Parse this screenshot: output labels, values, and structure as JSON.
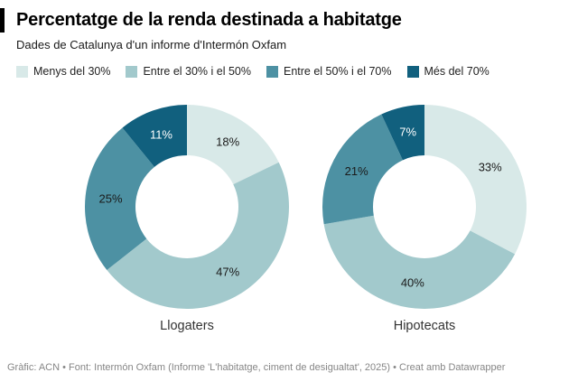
{
  "header": {
    "title": "Percentatge de la renda destinada a habitatge",
    "subtitle": "Dades de Catalunya d'un informe d'Intermón Oxfam"
  },
  "legend": {
    "position": "top",
    "items": [
      {
        "label": "Menys del 30%",
        "color": "#d8e9e8"
      },
      {
        "label": "Entre el 30% i el 50%",
        "color": "#a2c9cc"
      },
      {
        "label": "Entre el 50% i el 70%",
        "color": "#4d91a3"
      },
      {
        "label": "Més del 70%",
        "color": "#11607e"
      }
    ]
  },
  "chart_data": [
    {
      "type": "pie",
      "variant": "donut",
      "title": "Llogaters",
      "categories": [
        "Menys del 30%",
        "Entre el 30% i el 50%",
        "Entre el 50% i el 70%",
        "Més del 70%"
      ],
      "values": [
        18,
        47,
        25,
        11
      ],
      "labels": [
        "18%",
        "47%",
        "25%",
        "11%"
      ],
      "colors": [
        "#d8e9e8",
        "#a2c9cc",
        "#4d91a3",
        "#11607e"
      ],
      "label_colors": [
        "#1a1a1a",
        "#1a1a1a",
        "#1a1a1a",
        "#ffffff"
      ],
      "start_angle_deg": 0,
      "direction": "clockwise",
      "inner_radius_ratio": 0.5
    },
    {
      "type": "pie",
      "variant": "donut",
      "title": "Hipotecats",
      "categories": [
        "Menys del 30%",
        "Entre el 30% i el 50%",
        "Entre el 50% i el 70%",
        "Més del 70%"
      ],
      "values": [
        33,
        40,
        21,
        7
      ],
      "labels": [
        "33%",
        "40%",
        "21%",
        "7%"
      ],
      "colors": [
        "#d8e9e8",
        "#a2c9cc",
        "#4d91a3",
        "#11607e"
      ],
      "label_colors": [
        "#1a1a1a",
        "#1a1a1a",
        "#1a1a1a",
        "#ffffff"
      ],
      "start_angle_deg": 0,
      "direction": "clockwise",
      "inner_radius_ratio": 0.5
    }
  ],
  "footer": {
    "text": "Gràfic: ACN • Font: Intermón Oxfam (Informe 'L'habitatge, ciment de desigualtat', 2025) • Creat amb Datawrapper"
  }
}
